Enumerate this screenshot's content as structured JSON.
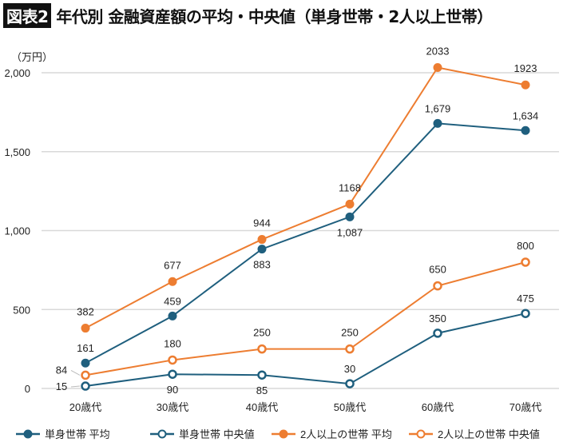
{
  "title": {
    "badge": "図表2",
    "text": "年代別 金融資産額の平均・中央値（単身世帯・2人以上世帯）"
  },
  "chart_data": {
    "type": "line",
    "unit_label": "（万円）",
    "categories": [
      "20歳代",
      "30歳代",
      "40歳代",
      "50歳代",
      "60歳代",
      "70歳代"
    ],
    "ylim": [
      0,
      2000
    ],
    "yticks": [
      0,
      500,
      1000,
      1500,
      2000
    ],
    "ytick_labels": [
      "0",
      "500",
      "1,000",
      "1,500",
      "2,000"
    ],
    "grid": true,
    "legend": "bottom",
    "series": [
      {
        "name": "単身世帯 平均",
        "color": "#1f5f7e",
        "marker": "filled",
        "values": [
          161,
          459,
          883,
          1087,
          1679,
          1634
        ],
        "labels": [
          "161",
          "459",
          "883",
          "1,087",
          "1,679",
          "1,634"
        ]
      },
      {
        "name": "単身世帯 中央値",
        "color": "#1f5f7e",
        "marker": "hollow",
        "values": [
          15,
          90,
          85,
          30,
          350,
          475
        ],
        "labels": [
          "15",
          "90",
          "85",
          "30",
          "350",
          "475"
        ]
      },
      {
        "name": "2人以上の世帯 平均",
        "color": "#ed7d31",
        "marker": "filled",
        "values": [
          382,
          677,
          944,
          1168,
          2033,
          1923
        ],
        "labels": [
          "382",
          "677",
          "944",
          "1168",
          "2033",
          "1923"
        ]
      },
      {
        "name": "2人以上の世帯 中央値",
        "color": "#ed7d31",
        "marker": "hollow",
        "values": [
          84,
          180,
          250,
          250,
          650,
          800
        ],
        "labels": [
          "84",
          "180",
          "250",
          "250",
          "650",
          "800"
        ]
      }
    ]
  }
}
